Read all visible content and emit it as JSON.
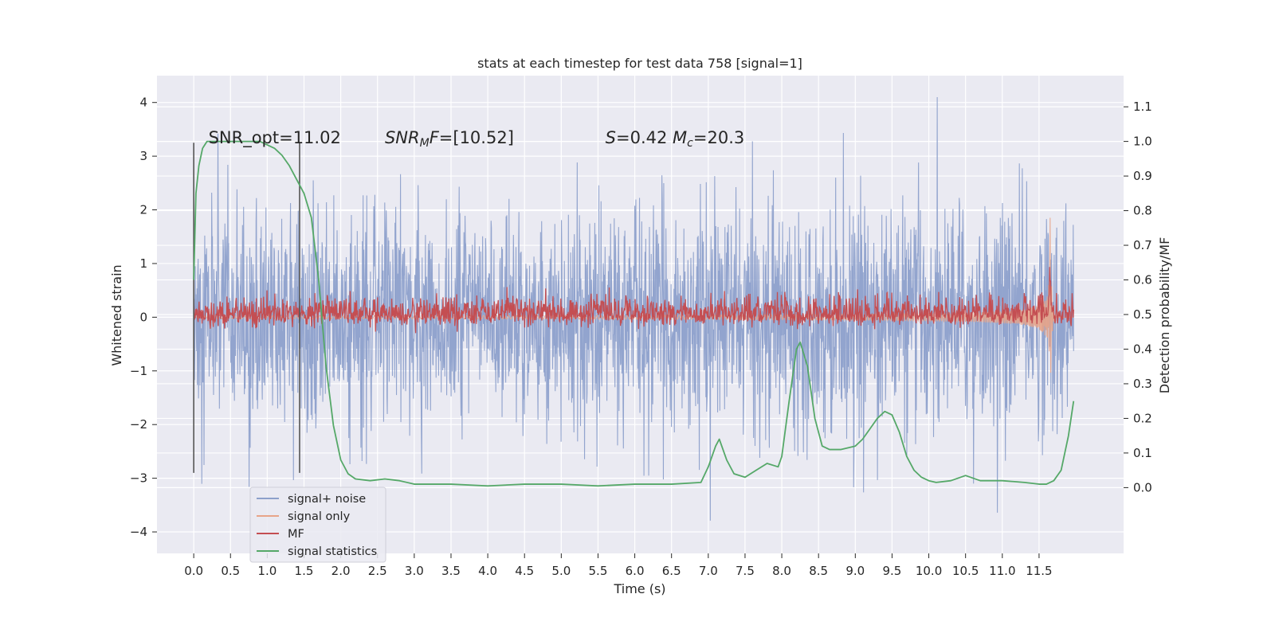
{
  "chart_data": {
    "type": "line",
    "title": "stats at each timestep for test data 758 [signal=1]",
    "xlabel": "Time (s)",
    "ylabel_left": "Whitened strain",
    "ylabel_right": "Detection probability/MF",
    "xlim": [
      -0.5,
      12.65
    ],
    "ylim_left": [
      -4.4,
      4.5
    ],
    "ylim_right": [
      -0.19,
      1.19
    ],
    "x_ticks": [
      "0.0",
      "0.5",
      "1.0",
      "1.5",
      "2.0",
      "2.5",
      "3.0",
      "3.5",
      "4.0",
      "4.5",
      "5.0",
      "5.5",
      "6.0",
      "6.5",
      "7.0",
      "7.5",
      "8.0",
      "8.5",
      "9.0",
      "9.5",
      "10.0",
      "10.5",
      "11.0",
      "11.5"
    ],
    "y_ticks_left": [
      "4",
      "3",
      "2",
      "1",
      "0",
      "−1",
      "−2",
      "−3",
      "−4"
    ],
    "y_ticks_right": [
      "1.1",
      "1.0",
      "0.9",
      "0.8",
      "0.7",
      "0.6",
      "0.5",
      "0.4",
      "0.3",
      "0.2",
      "0.1",
      "0.0"
    ],
    "grid": true,
    "legend_position": "lower-left",
    "annotations": [
      {
        "text": "SNR_opt=11.02",
        "x": 0.2,
        "y": 3.3
      },
      {
        "text_html": "<tspan font-style='italic'>SNR</tspan><tspan font-style='italic' font-size='14' dy='4'>M</tspan><tspan font-style='italic' dy='-4'>F</tspan>=[10.52]",
        "x": 2.6,
        "y": 3.3
      },
      {
        "text_html": "<tspan font-style='italic'>S</tspan>=0.42   <tspan font-style='italic'>M</tspan><tspan font-style='italic' font-size='14' dy='4'>c</tspan><tspan dy='-4'>=20.3</tspan>",
        "x": 5.6,
        "y": 3.3
      }
    ],
    "vertical_lines": [
      {
        "x": 0.0,
        "y_range": [
          -2.9,
          3.25
        ]
      },
      {
        "x": 1.44,
        "y_range": [
          -2.9,
          3.25
        ]
      }
    ],
    "series": [
      {
        "name": "signal+ noise",
        "color": "#8da0cb",
        "kind": "noise",
        "x_range": [
          0,
          11.97
        ],
        "spread": 1.4,
        "spike_max": 4.1
      },
      {
        "name": "signal only",
        "color": "#e8a488",
        "kind": "chirp",
        "x_range": [
          0,
          11.97
        ],
        "merger_time": 11.65,
        "peak": 2.0
      },
      {
        "name": "MF",
        "color": "#c44e52",
        "kind": "mf",
        "x_range": [
          0,
          11.97
        ],
        "level": 0.5,
        "peak_time": 11.65,
        "peak": 0.6
      },
      {
        "name": "signal statistics",
        "color": "#55a868",
        "kind": "stat",
        "x": [
          0.0,
          0.03,
          0.07,
          0.12,
          0.18,
          0.3,
          0.6,
          0.9,
          1.0,
          1.1,
          1.2,
          1.3,
          1.4,
          1.5,
          1.6,
          1.7,
          1.8,
          1.9,
          2.0,
          2.1,
          2.2,
          2.4,
          2.6,
          2.8,
          3.0,
          3.5,
          4.0,
          4.5,
          5.0,
          5.5,
          6.0,
          6.5,
          6.9,
          7.0,
          7.1,
          7.15,
          7.25,
          7.35,
          7.5,
          7.65,
          7.8,
          7.95,
          8.0,
          8.1,
          8.2,
          8.25,
          8.35,
          8.45,
          8.55,
          8.65,
          8.8,
          9.0,
          9.1,
          9.2,
          9.3,
          9.4,
          9.5,
          9.6,
          9.7,
          9.8,
          9.9,
          10.0,
          10.1,
          10.3,
          10.5,
          10.7,
          11.0,
          11.3,
          11.5,
          11.6,
          11.7,
          11.8,
          11.9,
          11.97
        ],
        "values": [
          0.6,
          0.85,
          0.93,
          0.98,
          1.0,
          1.0,
          1.0,
          1.0,
          0.99,
          0.98,
          0.96,
          0.93,
          0.89,
          0.85,
          0.78,
          0.6,
          0.35,
          0.18,
          0.08,
          0.04,
          0.025,
          0.02,
          0.025,
          0.02,
          0.01,
          0.01,
          0.005,
          0.01,
          0.01,
          0.005,
          0.01,
          0.01,
          0.015,
          0.06,
          0.12,
          0.14,
          0.08,
          0.04,
          0.03,
          0.05,
          0.07,
          0.06,
          0.09,
          0.25,
          0.4,
          0.42,
          0.35,
          0.2,
          0.12,
          0.11,
          0.11,
          0.12,
          0.14,
          0.17,
          0.2,
          0.22,
          0.21,
          0.16,
          0.09,
          0.05,
          0.03,
          0.02,
          0.015,
          0.02,
          0.035,
          0.02,
          0.02,
          0.015,
          0.01,
          0.01,
          0.02,
          0.05,
          0.15,
          0.25
        ]
      }
    ]
  }
}
